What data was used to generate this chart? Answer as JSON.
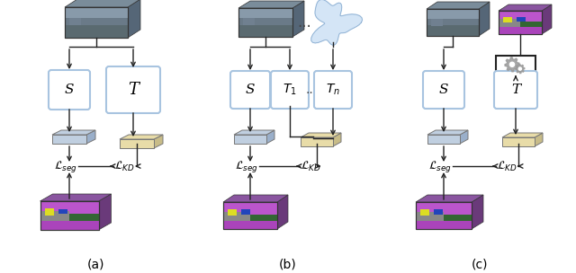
{
  "fig_width": 6.4,
  "fig_height": 3.04,
  "background_color": "#ffffff",
  "label_a": "(a)",
  "label_b": "(b)",
  "label_c": "(c)",
  "blue_border": "#a8c4e0",
  "black_border": "#222222",
  "arrow_color": "#222222",
  "feat_blue": "#c0cfe0",
  "feat_yellow": "#e8dca8",
  "feat_blue_dark": "#9aafca",
  "feat_yellow_dark": "#c8bc88"
}
